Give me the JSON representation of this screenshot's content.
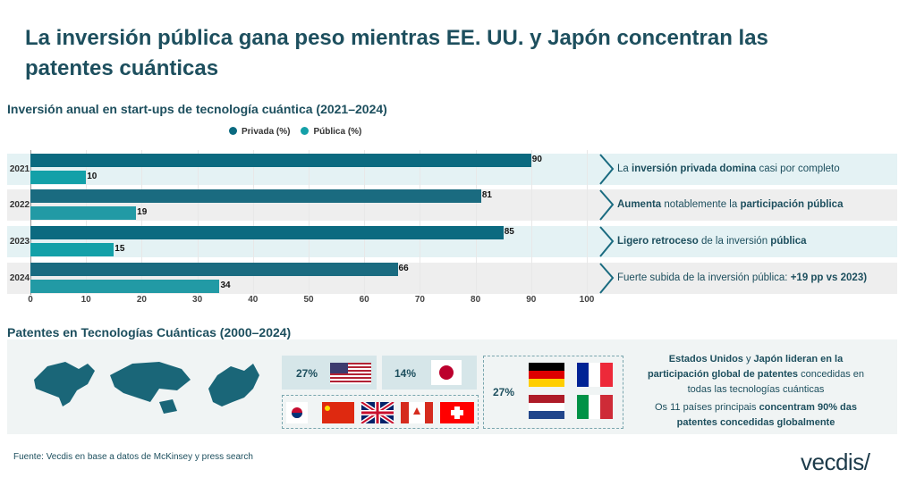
{
  "title": "La inversión pública gana peso mientras EE. UU. y Japón concentran las patentes cuánticas",
  "chart_data": {
    "type": "bar",
    "orientation": "horizontal",
    "title": "Inversión anual en start-ups de tecnología cuántica (2021–2024)",
    "categories": [
      "2021",
      "2022",
      "2023",
      "2024"
    ],
    "series": [
      {
        "name": "Privada (%)",
        "values": [
          90,
          81,
          85,
          66
        ],
        "color": "#0b6a80"
      },
      {
        "name": "Pública (%)",
        "values": [
          10,
          19,
          15,
          34
        ],
        "color": "#15a0a8"
      }
    ],
    "xlim": [
      0,
      100
    ],
    "xticks": [
      "0",
      "10",
      "20",
      "30",
      "40",
      "50",
      "60",
      "70",
      "80",
      "90",
      "100"
    ],
    "legend": "top",
    "grid": true
  },
  "notes": [
    [
      {
        "t": "La ",
        "b": false
      },
      {
        "t": "inversión privada domina",
        "b": true
      },
      {
        "t": " casi por completo",
        "b": false
      }
    ],
    [
      {
        "t": "Aumenta",
        "b": true
      },
      {
        "t": " notablemente la ",
        "b": false
      },
      {
        "t": "participación pública",
        "b": true
      }
    ],
    [
      {
        "t": "Ligero retroceso",
        "b": true
      },
      {
        "t": " de la inversión ",
        "b": false
      },
      {
        "t": "pública",
        "b": true
      }
    ],
    [
      {
        "t": "Fuerte subida de la inversión pública: ",
        "b": false
      },
      {
        "t": "+19 pp vs 2023)",
        "b": true
      }
    ]
  ],
  "patents": {
    "title": "Patentes en Tecnologías Cuánticas (2000–2024)",
    "us_pct": "27%",
    "jp_pct": "14%",
    "eu_pct": "27%",
    "text1": [
      {
        "t": "Estados Unidos",
        "b": true
      },
      {
        "t": " y ",
        "b": false
      },
      {
        "t": "Japón lideran en la participación global de patentes",
        "b": true
      },
      {
        "t": " concedidas en todas las tecnologías cuánticas",
        "b": false
      }
    ],
    "text2": [
      {
        "t": "Os 11 países principais ",
        "b": false
      },
      {
        "t": "concentram 90% das patentes concedidas globalmente",
        "b": true
      }
    ]
  },
  "footer": {
    "source": "Fuente: Vecdis en base a datos de McKinsey y press search",
    "logo": "vecdis/"
  }
}
